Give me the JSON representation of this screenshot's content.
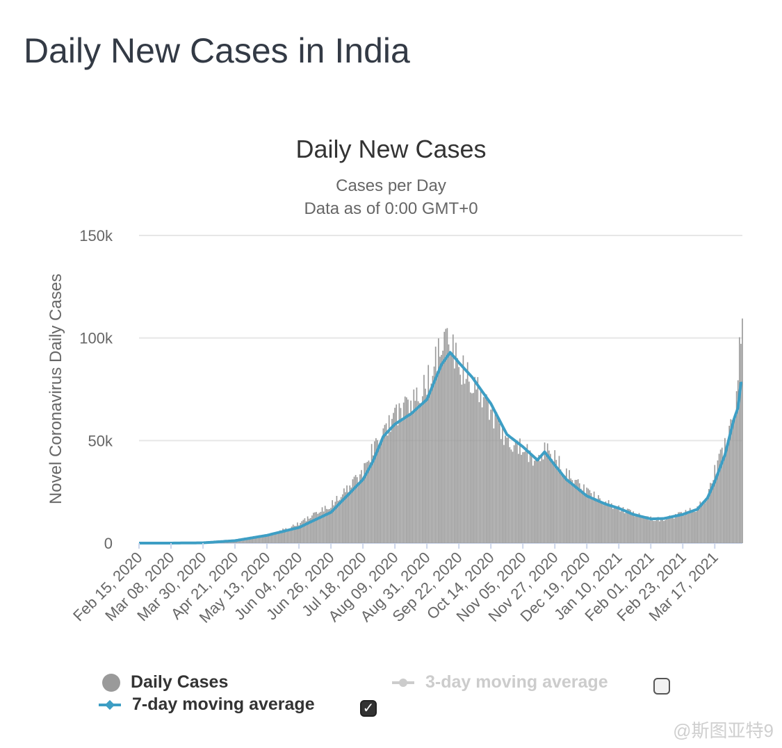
{
  "page": {
    "title": "Daily New Cases in India"
  },
  "watermark": "@斯图亚特9",
  "legend": {
    "daily_cases": "Daily Cases",
    "ma3": "3-day moving average",
    "ma7": "7-day moving average",
    "ma3_checked": false,
    "ma7_checked": true
  },
  "colors": {
    "bars": "#9a9a9a",
    "ma7": "#3d9ec4",
    "ma3_disabled": "#cccccc",
    "grid": "#e6e6e6"
  },
  "chart_data": {
    "type": "bar",
    "title": "Daily New Cases",
    "subtitle": "Cases per Day",
    "subtitle2": "Data as of 0:00 GMT+0",
    "ylabel": "Novel Coronavirus Daily Cases",
    "xlabel": "",
    "ylim": [
      0,
      150000
    ],
    "yticks": [
      0,
      50000,
      100000,
      150000
    ],
    "ytick_labels": [
      "0",
      "50k",
      "100k",
      "150k"
    ],
    "xtick_labels": [
      "Feb 15, 2020",
      "Mar 08, 2020",
      "Mar 30, 2020",
      "Apr 21, 2020",
      "May 13, 2020",
      "Jun 04, 2020",
      "Jun 26, 2020",
      "Jul 18, 2020",
      "Aug 09, 2020",
      "Aug 31, 2020",
      "Sep 22, 2020",
      "Oct 14, 2020",
      "Nov 05, 2020",
      "Nov 27, 2020",
      "Dec 19, 2020",
      "Jan 10, 2021",
      "Feb 01, 2021",
      "Feb 23, 2021",
      "Mar 17, 2021"
    ],
    "x_start": "2020-02-15",
    "x_end": "2021-04-05",
    "grid": true,
    "legend_position": "bottom",
    "series": [
      {
        "name": "Daily Cases",
        "type": "bar",
        "points": [
          [
            "2020-02-15",
            0
          ],
          [
            "2020-03-08",
            10
          ],
          [
            "2020-03-30",
            200
          ],
          [
            "2020-04-21",
            1400
          ],
          [
            "2020-05-13",
            3600
          ],
          [
            "2020-06-04",
            9500
          ],
          [
            "2020-06-26",
            18500
          ],
          [
            "2020-07-18",
            34000
          ],
          [
            "2020-07-25",
            47000
          ],
          [
            "2020-08-01",
            55000
          ],
          [
            "2020-08-09",
            62000
          ],
          [
            "2020-08-20",
            68000
          ],
          [
            "2020-08-31",
            78000
          ],
          [
            "2020-09-10",
            95000
          ],
          [
            "2020-09-16",
            97000
          ],
          [
            "2020-09-22",
            86000
          ],
          [
            "2020-10-01",
            80000
          ],
          [
            "2020-10-14",
            64000
          ],
          [
            "2020-10-25",
            50000
          ],
          [
            "2020-11-05",
            47000
          ],
          [
            "2020-11-15",
            38000
          ],
          [
            "2020-11-20",
            46000
          ],
          [
            "2020-11-27",
            42000
          ],
          [
            "2020-12-05",
            34000
          ],
          [
            "2020-12-19",
            25000
          ],
          [
            "2021-01-01",
            20000
          ],
          [
            "2021-01-10",
            17000
          ],
          [
            "2021-01-20",
            14500
          ],
          [
            "2021-02-01",
            12000
          ],
          [
            "2021-02-10",
            11500
          ],
          [
            "2021-02-23",
            14500
          ],
          [
            "2021-03-05",
            17000
          ],
          [
            "2021-03-12",
            23000
          ],
          [
            "2021-03-17",
            35000
          ],
          [
            "2021-03-24",
            47000
          ],
          [
            "2021-03-30",
            62000
          ],
          [
            "2021-04-02",
            81000
          ],
          [
            "2021-04-04",
            103500
          ]
        ]
      },
      {
        "name": "7-day moving average",
        "type": "line",
        "points": [
          [
            "2020-02-15",
            0
          ],
          [
            "2020-03-08",
            10
          ],
          [
            "2020-03-30",
            150
          ],
          [
            "2020-04-21",
            1200
          ],
          [
            "2020-05-13",
            3800
          ],
          [
            "2020-06-04",
            7600
          ],
          [
            "2020-06-26",
            15000
          ],
          [
            "2020-07-18",
            31000
          ],
          [
            "2020-07-25",
            40000
          ],
          [
            "2020-08-01",
            52000
          ],
          [
            "2020-08-09",
            58000
          ],
          [
            "2020-08-20",
            63000
          ],
          [
            "2020-08-31",
            70000
          ],
          [
            "2020-09-10",
            87000
          ],
          [
            "2020-09-16",
            93000
          ],
          [
            "2020-09-22",
            88000
          ],
          [
            "2020-10-01",
            81000
          ],
          [
            "2020-10-14",
            68000
          ],
          [
            "2020-10-25",
            53000
          ],
          [
            "2020-11-05",
            47000
          ],
          [
            "2020-11-15",
            40500
          ],
          [
            "2020-11-20",
            44500
          ],
          [
            "2020-11-27",
            38000
          ],
          [
            "2020-12-05",
            31000
          ],
          [
            "2020-12-19",
            23000
          ],
          [
            "2021-01-01",
            19000
          ],
          [
            "2021-01-10",
            17000
          ],
          [
            "2021-01-20",
            14000
          ],
          [
            "2021-02-01",
            11800
          ],
          [
            "2021-02-10",
            12000
          ],
          [
            "2021-02-23",
            14000
          ],
          [
            "2021-03-05",
            16500
          ],
          [
            "2021-03-12",
            22000
          ],
          [
            "2021-03-17",
            30000
          ],
          [
            "2021-03-24",
            43000
          ],
          [
            "2021-03-30",
            60000
          ],
          [
            "2021-04-02",
            66000
          ],
          [
            "2021-04-04",
            78000
          ]
        ]
      }
    ]
  }
}
